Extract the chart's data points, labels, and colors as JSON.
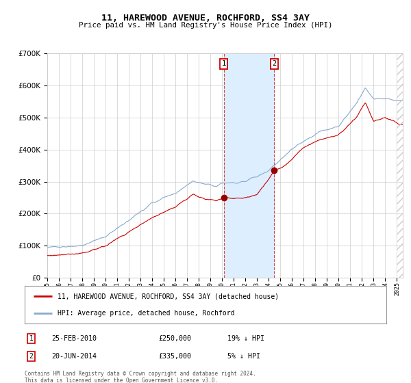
{
  "title": "11, HAREWOOD AVENUE, ROCHFORD, SS4 3AY",
  "subtitle": "Price paid vs. HM Land Registry's House Price Index (HPI)",
  "legend_line1": "11, HAREWOOD AVENUE, ROCHFORD, SS4 3AY (detached house)",
  "legend_line2": "HPI: Average price, detached house, Rochford",
  "table_rows": [
    {
      "num": "1",
      "date": "25-FEB-2010",
      "price": "£250,000",
      "hpi": "19% ↓ HPI"
    },
    {
      "num": "2",
      "date": "20-JUN-2014",
      "price": "£335,000",
      "hpi": "5% ↓ HPI"
    }
  ],
  "footnote": "Contains HM Land Registry data © Crown copyright and database right 2024.\nThis data is licensed under the Open Government Licence v3.0.",
  "sale1_year": 2010.14,
  "sale1_price": 250000,
  "sale2_year": 2014.47,
  "sale2_price": 335000,
  "hpi_color": "#88aacc",
  "price_color": "#cc0000",
  "marker_color": "#990000",
  "shade_color": "#ddeeff",
  "vline_color": "#cc4444",
  "box_edge_color": "#cc0000",
  "ylim": [
    0,
    700000
  ],
  "xlim_start": 1995,
  "xlim_end": 2025.5,
  "background_color": "#ffffff",
  "grid_color": "#cccccc",
  "hatch_color": "#cccccc"
}
